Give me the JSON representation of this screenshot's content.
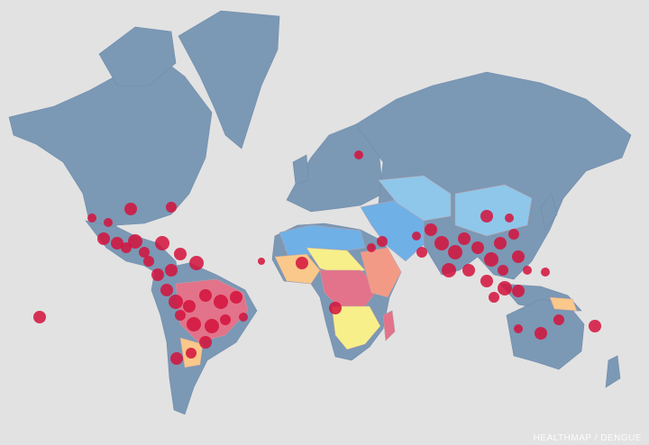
{
  "map": {
    "subject": "Dengue occurrence world map",
    "colors": {
      "background": "#e2e2e2",
      "land_default": "#7b98b5",
      "risk_low": "#8ec7ea",
      "risk_low_alt": "#6fb0e6",
      "risk_medium_low": "#f7ef8a",
      "risk_medium": "#f9c88a",
      "risk_medium_high": "#f29a86",
      "risk_high": "#e2738a",
      "outbreak_marker": "#d3123c"
    }
  },
  "credit": "HEALTHMAP / DENGUE"
}
